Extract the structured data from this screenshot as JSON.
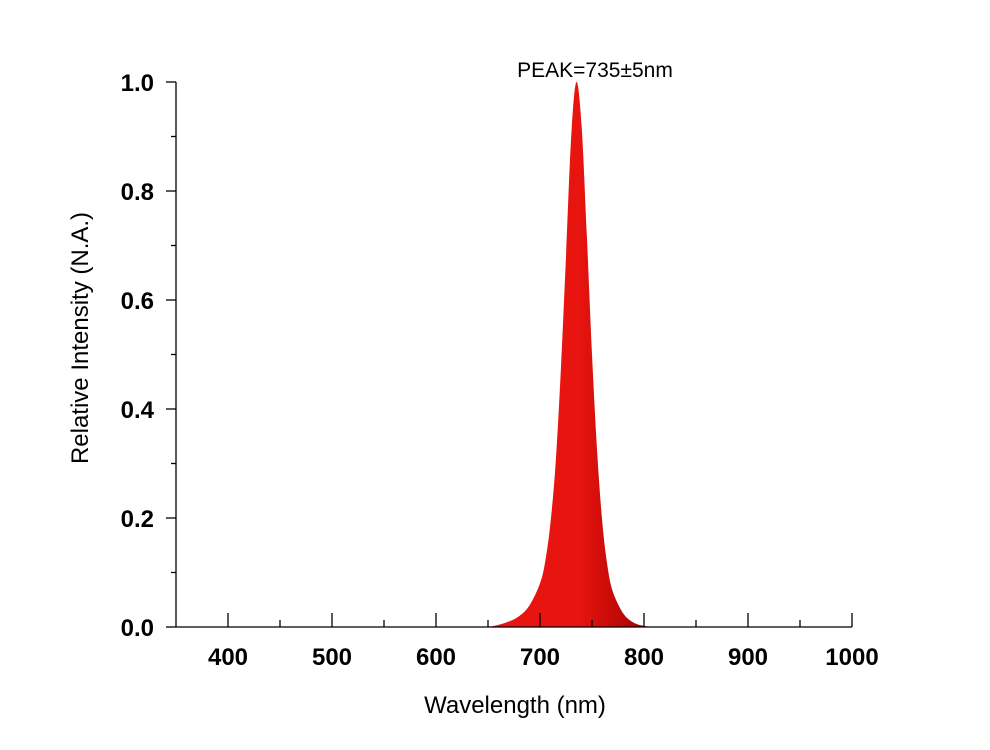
{
  "chart_data": {
    "type": "area",
    "title": "",
    "xlabel": "Wavelength (nm)",
    "ylabel": "Relative Intensity (N.A.)",
    "xlim": [
      350,
      1000
    ],
    "ylim": [
      0,
      1.0
    ],
    "x_ticks": [
      400,
      500,
      600,
      700,
      800,
      900,
      1000
    ],
    "x_tick_labels": [
      "400",
      "500",
      "600",
      "700",
      "800",
      "900",
      "1000"
    ],
    "y_ticks": [
      0.0,
      0.2,
      0.4,
      0.6,
      0.8,
      1.0
    ],
    "y_tick_labels": [
      "0.0",
      "0.2",
      "0.4",
      "0.6",
      "0.8",
      "1.0"
    ],
    "grid": false,
    "annotation": "PEAK=735±5nm",
    "fill_color": "#e8140f",
    "fill_color_dark": "#9b0000",
    "series": [
      {
        "x": [
          650,
          660,
          670,
          680,
          690,
          700,
          705,
          710,
          715,
          720,
          725,
          730,
          735,
          740,
          745,
          750,
          755,
          760,
          765,
          770,
          780,
          790,
          800,
          810
        ],
        "y": [
          0.0,
          0.004,
          0.01,
          0.02,
          0.04,
          0.08,
          0.12,
          0.19,
          0.3,
          0.47,
          0.68,
          0.9,
          1.0,
          0.92,
          0.72,
          0.5,
          0.32,
          0.19,
          0.11,
          0.065,
          0.025,
          0.008,
          0.002,
          0.0
        ]
      }
    ]
  }
}
